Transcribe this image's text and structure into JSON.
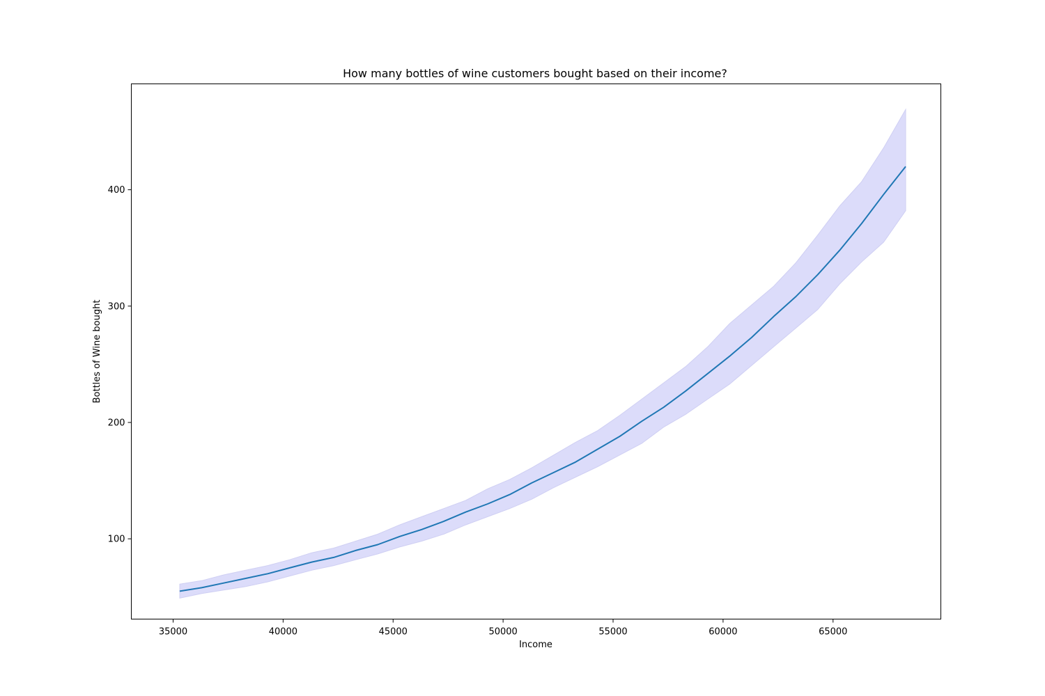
{
  "chart_data": {
    "type": "line",
    "title": "How many bottles of wine customers bought based on their income?",
    "xlabel": "Income",
    "ylabel": "Bottles of Wine bought",
    "xlim": [
      33100,
      69900
    ],
    "ylim": [
      31,
      491
    ],
    "xticks": [
      35000,
      40000,
      45000,
      50000,
      55000,
      60000,
      65000
    ],
    "xtick_labels": [
      "35000",
      "40000",
      "45000",
      "50000",
      "55000",
      "60000",
      "65000"
    ],
    "yticks": [
      100,
      200,
      300,
      400
    ],
    "ytick_labels": [
      "100",
      "200",
      "300",
      "400"
    ],
    "grid": false,
    "legend": "none",
    "colors": {
      "line": "#1f77b4",
      "band": "#dcdcfa",
      "band_edge": "#cfcff3"
    },
    "x": [
      35300,
      36300,
      37300,
      38300,
      39300,
      40300,
      41300,
      42300,
      43300,
      44300,
      45300,
      46300,
      47300,
      48300,
      49300,
      50300,
      51300,
      52300,
      53300,
      54300,
      55300,
      56300,
      57300,
      58300,
      59300,
      60300,
      61300,
      62300,
      63300,
      64300,
      65300,
      66300,
      67300,
      68300
    ],
    "series": [
      {
        "values": [
          55,
          58,
          62,
          66,
          70,
          75,
          80,
          84,
          90,
          95,
          102,
          108,
          115,
          123,
          130,
          138,
          148,
          157,
          166,
          177,
          188,
          201,
          213,
          227,
          242,
          257,
          273,
          291,
          308,
          327,
          348,
          371,
          396,
          420
        ],
        "lower": [
          49,
          53,
          56,
          59,
          63,
          68,
          73,
          77,
          82,
          87,
          93,
          98,
          104,
          112,
          119,
          126,
          134,
          144,
          153,
          162,
          172,
          182,
          196,
          207,
          220,
          233,
          249,
          265,
          281,
          297,
          319,
          338,
          355,
          382
        ],
        "upper": [
          61,
          64,
          69,
          73,
          77,
          82,
          88,
          92,
          98,
          104,
          112,
          119,
          126,
          133,
          143,
          151,
          161,
          172,
          183,
          193,
          206,
          220,
          234,
          248,
          265,
          285,
          301,
          317,
          337,
          361,
          386,
          407,
          436,
          469
        ]
      }
    ]
  }
}
